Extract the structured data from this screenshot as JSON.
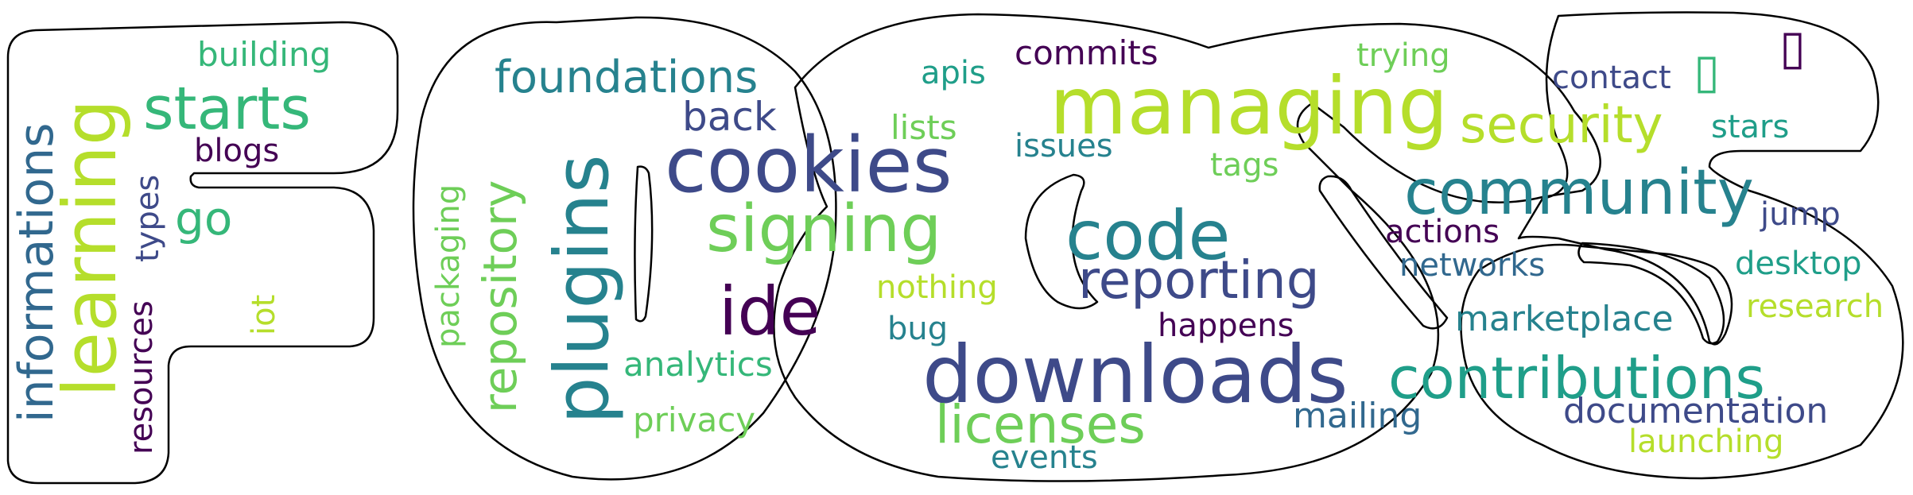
{
  "palette": {
    "dark_purple": "#440154",
    "indigo": "#3e4a89",
    "blue": "#31688e",
    "teal": "#26828e",
    "green_teal": "#1f9e89",
    "green": "#35b779",
    "light_green": "#6ece58",
    "lime": "#b5de2b"
  },
  "words": [
    {
      "text": "informations",
      "color": "#31688e"
    },
    {
      "text": "learning",
      "color": "#b5de2b"
    },
    {
      "text": "building",
      "color": "#35b779"
    },
    {
      "text": "starts",
      "color": "#35b779"
    },
    {
      "text": "blogs",
      "color": "#440154"
    },
    {
      "text": "types",
      "color": "#3e4a89"
    },
    {
      "text": "go",
      "color": "#35b779"
    },
    {
      "text": "resources",
      "color": "#440154"
    },
    {
      "text": "iot",
      "color": "#b5de2b"
    },
    {
      "text": "foundations",
      "color": "#26828e"
    },
    {
      "text": "back",
      "color": "#3e4a89"
    },
    {
      "text": "packaging",
      "color": "#6ece58"
    },
    {
      "text": "repository",
      "color": "#6ece58"
    },
    {
      "text": "plugins",
      "color": "#26828e"
    },
    {
      "text": "cookies",
      "color": "#3e4a89"
    },
    {
      "text": "signing",
      "color": "#6ece58"
    },
    {
      "text": "ide",
      "color": "#440154"
    },
    {
      "text": "analytics",
      "color": "#35b779"
    },
    {
      "text": "privacy",
      "color": "#6ece58"
    },
    {
      "text": "apis",
      "color": "#1f9e89"
    },
    {
      "text": "commits",
      "color": "#440154"
    },
    {
      "text": "lists",
      "color": "#6ece58"
    },
    {
      "text": "managing",
      "color": "#b5de2b"
    },
    {
      "text": "issues",
      "color": "#26828e"
    },
    {
      "text": "trying",
      "color": "#6ece58"
    },
    {
      "text": "tags",
      "color": "#6ece58"
    },
    {
      "text": "nothing",
      "color": "#b5de2b"
    },
    {
      "text": "bug",
      "color": "#26828e"
    },
    {
      "text": "code",
      "color": "#26828e"
    },
    {
      "text": "reporting",
      "color": "#3e4a89"
    },
    {
      "text": "downloads",
      "color": "#3e4a89"
    },
    {
      "text": "licenses",
      "color": "#6ece58"
    },
    {
      "text": "events",
      "color": "#26828e"
    },
    {
      "text": "happens",
      "color": "#440154"
    },
    {
      "text": "mailing",
      "color": "#31688e"
    },
    {
      "text": "contact",
      "color": "#3e4a89"
    },
    {
      "text": "security",
      "color": "#b5de2b"
    },
    {
      "text": "stars",
      "color": "#1f9e89"
    },
    {
      "text": "community",
      "color": "#26828e"
    },
    {
      "text": "jump",
      "color": "#3e4a89"
    },
    {
      "text": "actions",
      "color": "#440154"
    },
    {
      "text": "networks",
      "color": "#31688e"
    },
    {
      "text": "desktop",
      "color": "#1f9e89"
    },
    {
      "text": "research",
      "color": "#b5de2b"
    },
    {
      "text": "marketplace",
      "color": "#26828e"
    },
    {
      "text": "contributions",
      "color": "#1f9e89"
    },
    {
      "text": "documentation",
      "color": "#3e4a89"
    },
    {
      "text": "launching",
      "color": "#b5de2b"
    }
  ],
  "icons": [
    {
      "name": "missing-glyph-icon",
      "color": "#35b779"
    },
    {
      "name": "missing-glyph-icon",
      "color": "#440154"
    }
  ]
}
